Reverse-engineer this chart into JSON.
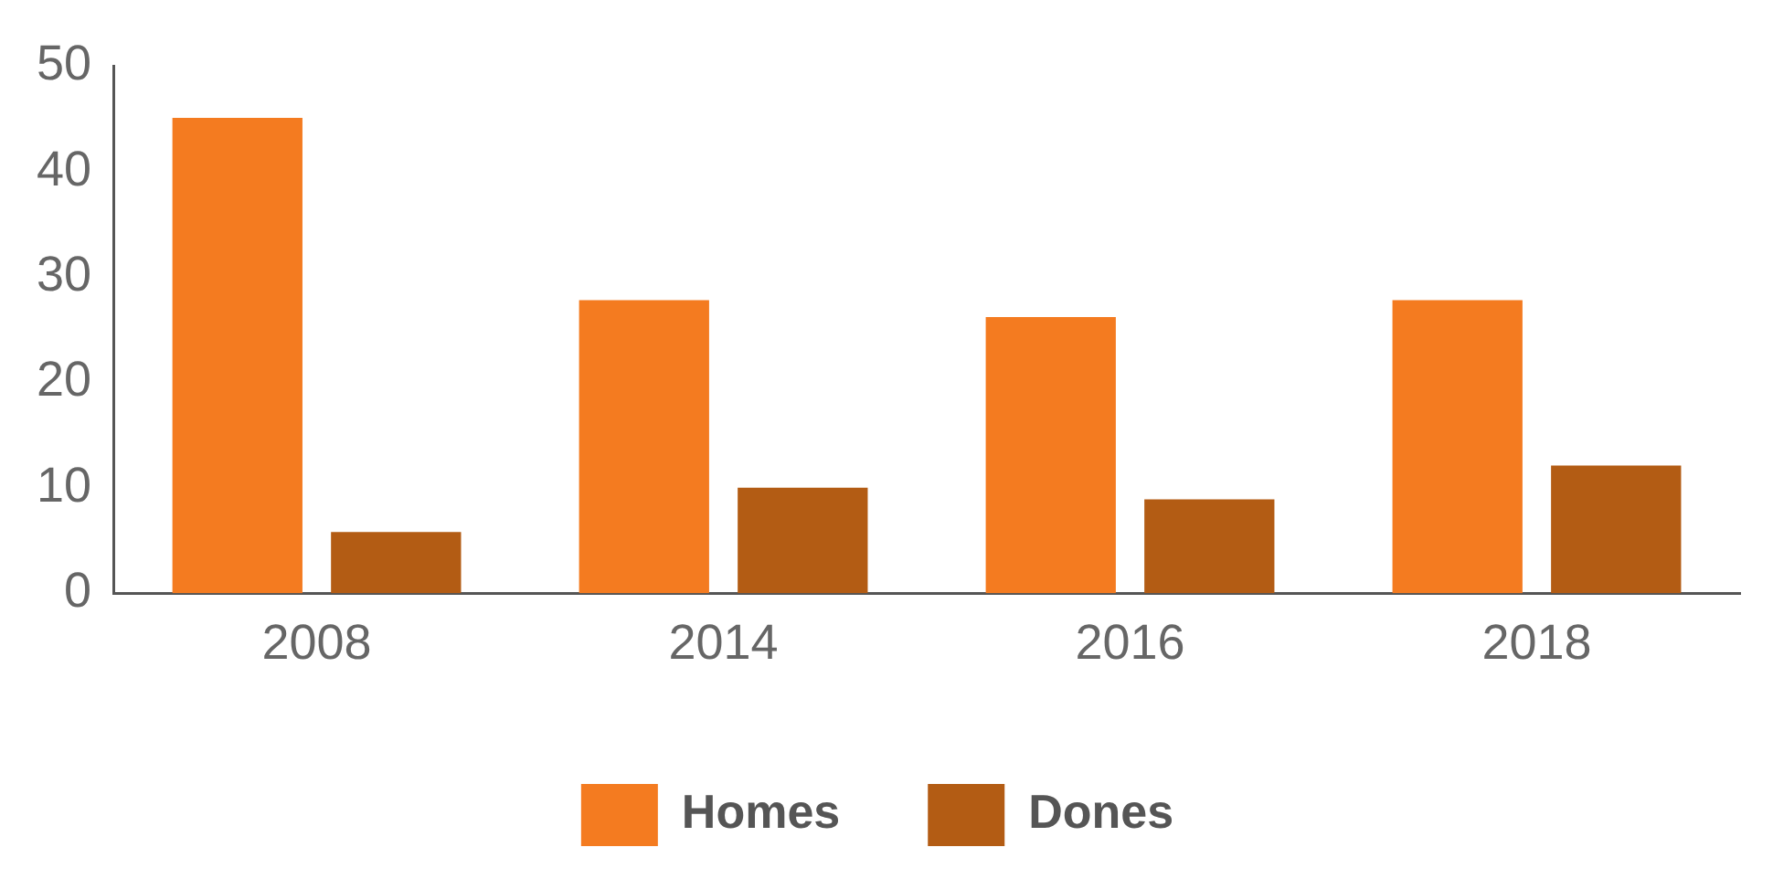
{
  "chart_data": {
    "type": "bar",
    "categories": [
      "2008",
      "2014",
      "2016",
      "2018"
    ],
    "series": [
      {
        "name": "Homes",
        "color": "#f47b20",
        "values": [
          45.1,
          27.8,
          26.2,
          27.8
        ]
      },
      {
        "name": "Dones",
        "color": "#b35c14",
        "values": [
          5.8,
          10,
          8.9,
          12.1
        ]
      }
    ],
    "ylim": [
      0,
      50
    ],
    "yticks": [
      0,
      10,
      20,
      30,
      40,
      50
    ],
    "grid": false,
    "legend": "bottom"
  }
}
